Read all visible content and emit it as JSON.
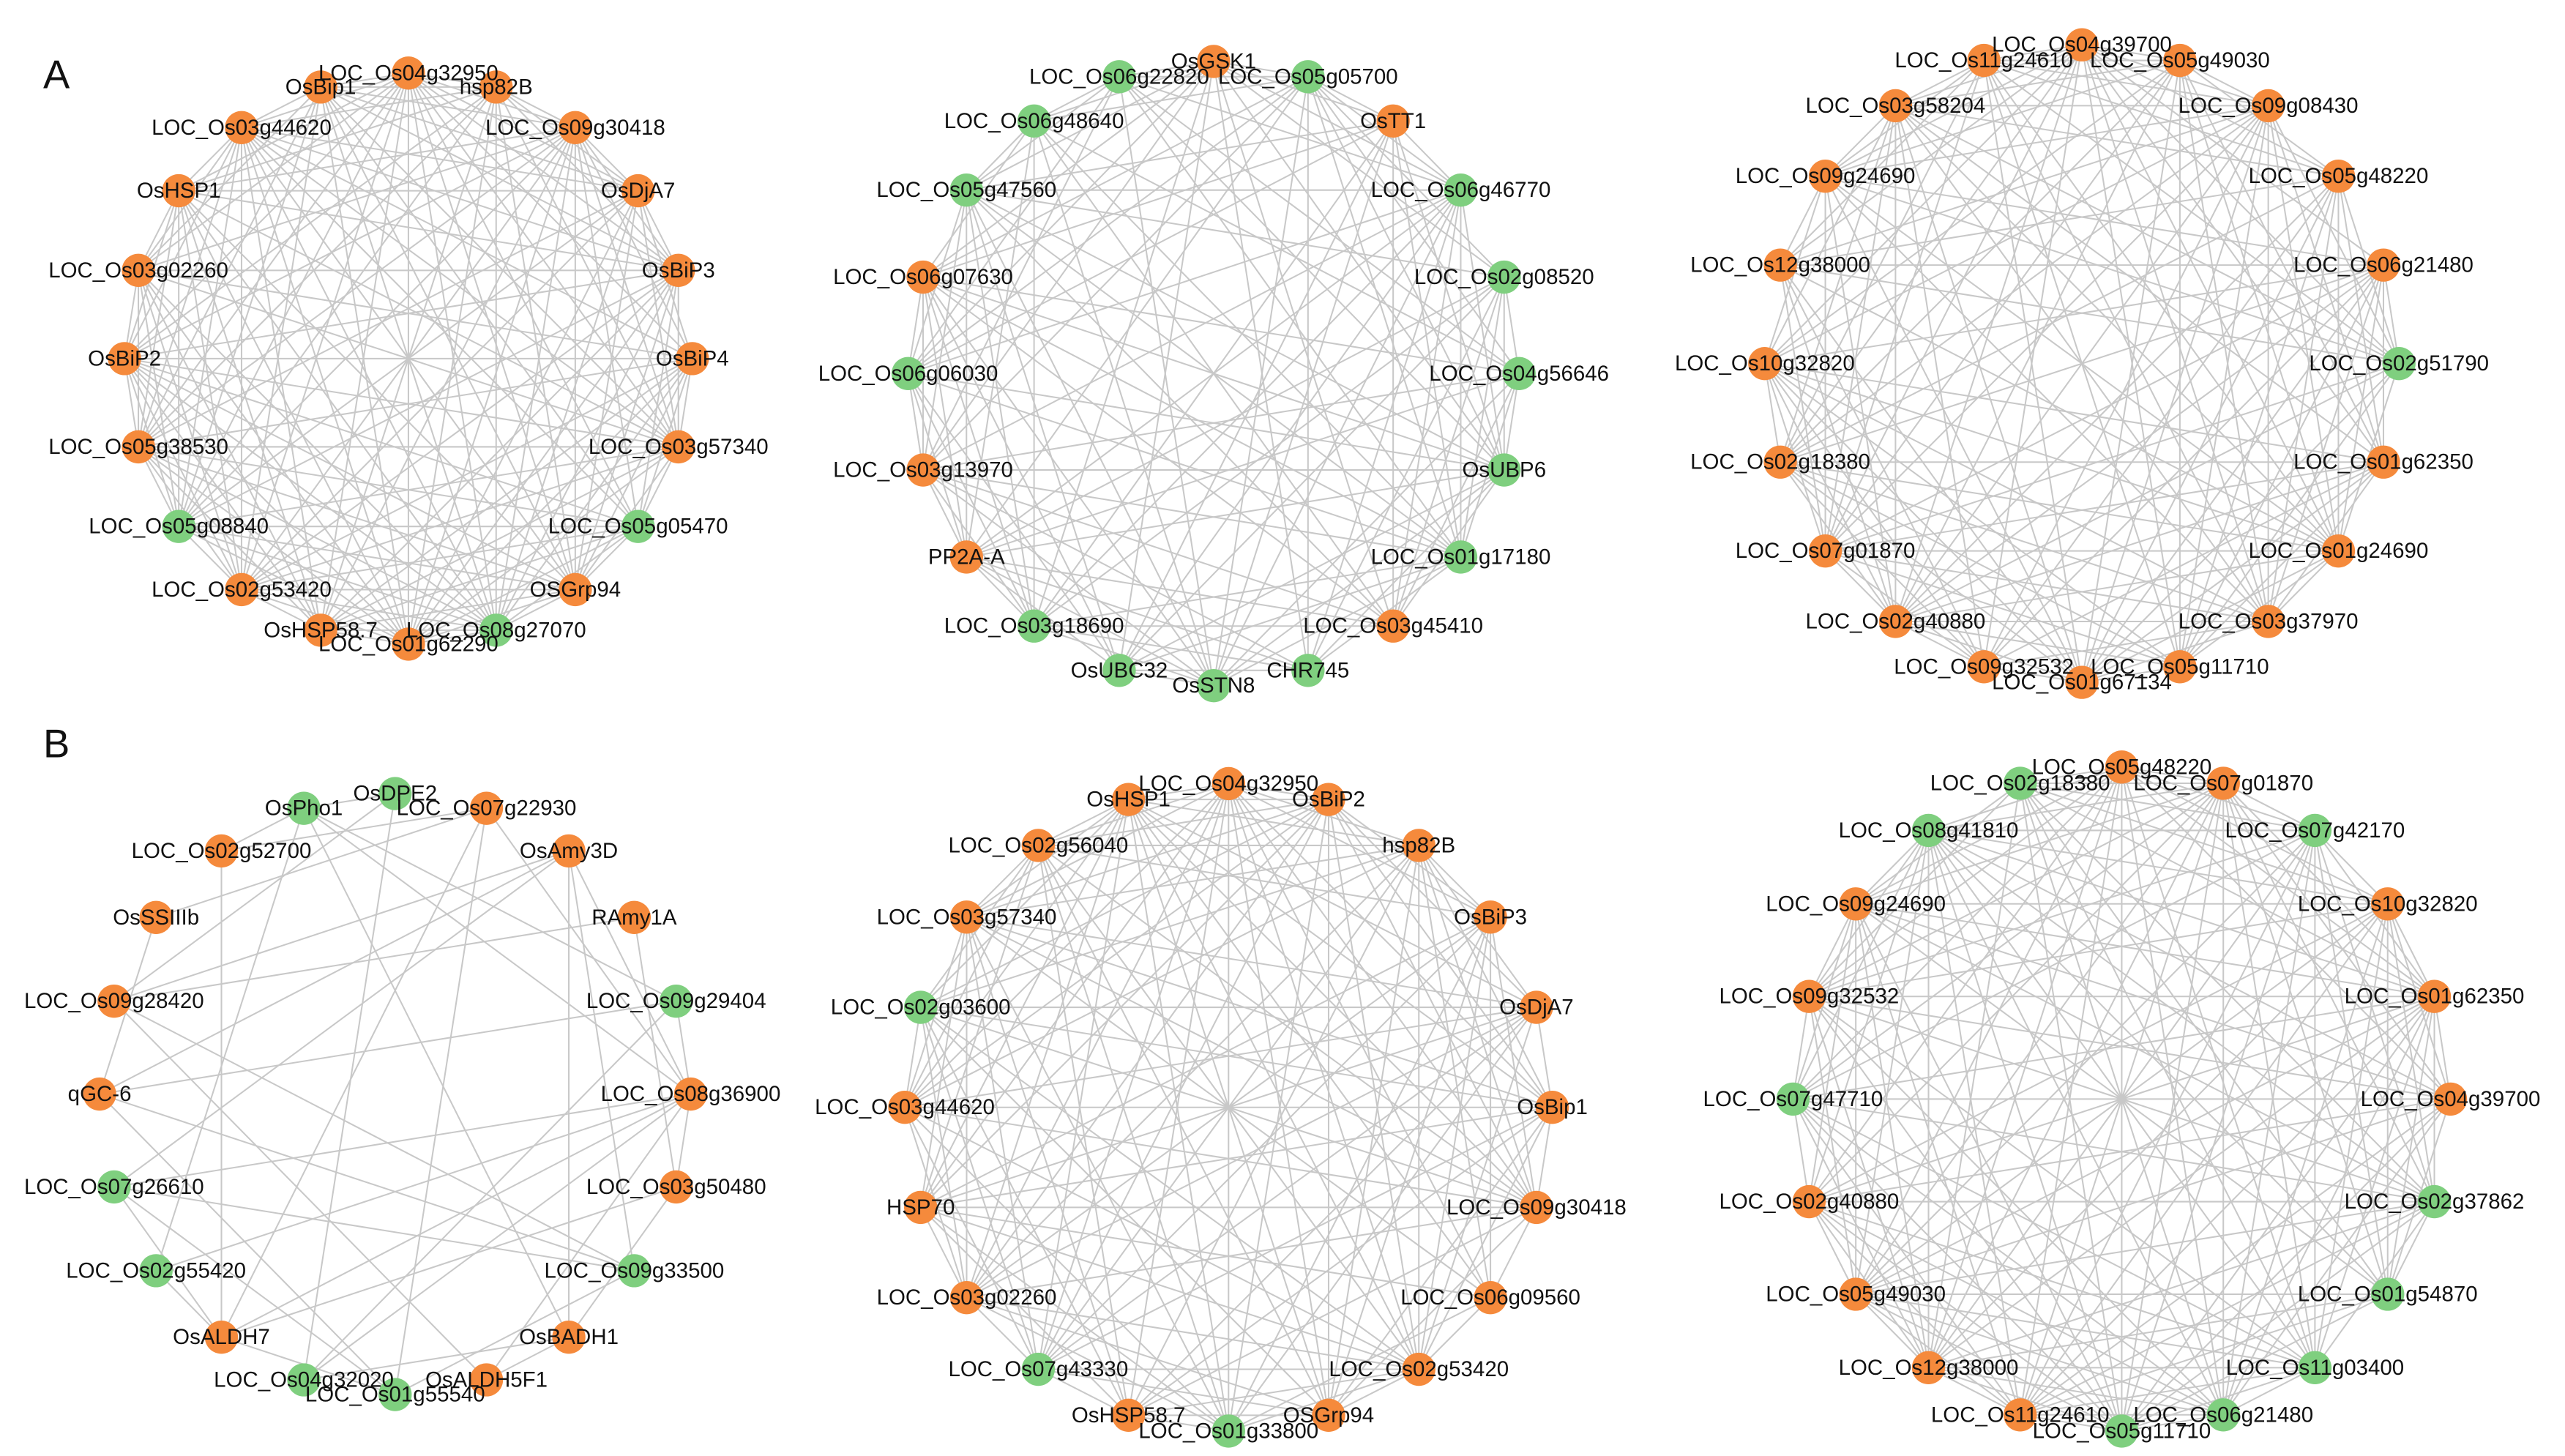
{
  "panels": [
    {
      "label": "A",
      "networks": [
        {
          "nodes": [
            {
              "label": "LOC_Os04g32950",
              "color": "#f58a3c"
            },
            {
              "label": "hsp82B",
              "color": "#f58a3c"
            },
            {
              "label": "LOC_Os09g30418",
              "color": "#f58a3c"
            },
            {
              "label": "OsDjA7",
              "color": "#f58a3c"
            },
            {
              "label": "OsBiP3",
              "color": "#f58a3c"
            },
            {
              "label": "OsBiP4",
              "color": "#f58a3c"
            },
            {
              "label": "LOC_Os03g57340",
              "color": "#f58a3c"
            },
            {
              "label": "LOC_Os05g05470",
              "color": "#7fcf7f"
            },
            {
              "label": "OSGrp94",
              "color": "#f58a3c"
            },
            {
              "label": "LOC_Os08g27070",
              "color": "#7fcf7f"
            },
            {
              "label": "LOC_Os01g62290",
              "color": "#f58a3c"
            },
            {
              "label": "OsHSP58.7",
              "color": "#f58a3c"
            },
            {
              "label": "LOC_Os02g53420",
              "color": "#f58a3c"
            },
            {
              "label": "LOC_Os05g08840",
              "color": "#7fcf7f"
            },
            {
              "label": "LOC_Os05g38530",
              "color": "#f58a3c"
            },
            {
              "label": "OsBiP2",
              "color": "#f58a3c"
            },
            {
              "label": "LOC_Os03g02260",
              "color": "#f58a3c"
            },
            {
              "label": "OsHSP1",
              "color": "#f58a3c"
            },
            {
              "label": "LOC_Os03g44620",
              "color": "#f58a3c"
            },
            {
              "label": "OsBip1",
              "color": "#f58a3c"
            }
          ]
        },
        {
          "nodes": [
            {
              "label": "OsGSK1",
              "color": "#f58a3c"
            },
            {
              "label": "LOC_Os05g05700",
              "color": "#7fcf7f"
            },
            {
              "label": "OsTT1",
              "color": "#f58a3c"
            },
            {
              "label": "LOC_Os06g46770",
              "color": "#7fcf7f"
            },
            {
              "label": "LOC_Os02g08520",
              "color": "#7fcf7f"
            },
            {
              "label": "LOC_Os04g56646",
              "color": "#7fcf7f"
            },
            {
              "label": "OsUBP6",
              "color": "#7fcf7f"
            },
            {
              "label": "LOC_Os01g17180",
              "color": "#7fcf7f"
            },
            {
              "label": "LOC_Os03g45410",
              "color": "#f58a3c"
            },
            {
              "label": "CHR745",
              "color": "#7fcf7f"
            },
            {
              "label": "OsSTN8",
              "color": "#7fcf7f"
            },
            {
              "label": "OsUBC32",
              "color": "#7fcf7f"
            },
            {
              "label": "LOC_Os03g18690",
              "color": "#7fcf7f"
            },
            {
              "label": "PP2A-A",
              "color": "#f58a3c"
            },
            {
              "label": "LOC_Os03g13970",
              "color": "#f58a3c"
            },
            {
              "label": "LOC_Os06g06030",
              "color": "#7fcf7f"
            },
            {
              "label": "LOC_Os06g07630",
              "color": "#f58a3c"
            },
            {
              "label": "LOC_Os05g47560",
              "color": "#7fcf7f"
            },
            {
              "label": "LOC_Os06g48640",
              "color": "#7fcf7f"
            },
            {
              "label": "LOC_Os06g22820",
              "color": "#7fcf7f"
            }
          ]
        },
        {
          "nodes": [
            {
              "label": "LOC_Os04g39700",
              "color": "#f58a3c"
            },
            {
              "label": "LOC_Os05g49030",
              "color": "#f58a3c"
            },
            {
              "label": "LOC_Os09g08430",
              "color": "#f58a3c"
            },
            {
              "label": "LOC_Os05g48220",
              "color": "#f58a3c"
            },
            {
              "label": "LOC_Os06g21480",
              "color": "#f58a3c"
            },
            {
              "label": "LOC_Os02g51790",
              "color": "#7fcf7f"
            },
            {
              "label": "LOC_Os01g62350",
              "color": "#f58a3c"
            },
            {
              "label": "LOC_Os01g24690",
              "color": "#f58a3c"
            },
            {
              "label": "LOC_Os03g37970",
              "color": "#f58a3c"
            },
            {
              "label": "LOC_Os05g11710",
              "color": "#f58a3c"
            },
            {
              "label": "LOC_Os01g67134",
              "color": "#f58a3c"
            },
            {
              "label": "LOC_Os09g32532",
              "color": "#f58a3c"
            },
            {
              "label": "LOC_Os02g40880",
              "color": "#f58a3c"
            },
            {
              "label": "LOC_Os07g01870",
              "color": "#f58a3c"
            },
            {
              "label": "LOC_Os02g18380",
              "color": "#f58a3c"
            },
            {
              "label": "LOC_Os10g32820",
              "color": "#f58a3c"
            },
            {
              "label": "LOC_Os12g38000",
              "color": "#f58a3c"
            },
            {
              "label": "LOC_Os09g24690",
              "color": "#f58a3c"
            },
            {
              "label": "LOC_Os03g58204",
              "color": "#f58a3c"
            },
            {
              "label": "LOC_Os11g24610",
              "color": "#f58a3c"
            }
          ]
        }
      ]
    },
    {
      "label": "B",
      "networks": [
        {
          "nodes": [
            {
              "label": "OsDPE2",
              "color": "#7fcf7f"
            },
            {
              "label": "LOC_Os07g22930",
              "color": "#f58a3c"
            },
            {
              "label": "OsAmy3D",
              "color": "#f58a3c"
            },
            {
              "label": "RAmy1A",
              "color": "#f58a3c"
            },
            {
              "label": "LOC_Os09g29404",
              "color": "#7fcf7f"
            },
            {
              "label": "LOC_Os08g36900",
              "color": "#f58a3c"
            },
            {
              "label": "LOC_Os03g50480",
              "color": "#f58a3c"
            },
            {
              "label": "LOC_Os09g33500",
              "color": "#7fcf7f"
            },
            {
              "label": "OsBADH1",
              "color": "#f58a3c"
            },
            {
              "label": "OsALDH5F1",
              "color": "#f58a3c"
            },
            {
              "label": "LOC_Os01g55540",
              "color": "#7fcf7f"
            },
            {
              "label": "LOC_Os04g32020",
              "color": "#7fcf7f"
            },
            {
              "label": "OsALDH7",
              "color": "#f58a3c"
            },
            {
              "label": "LOC_Os02g55420",
              "color": "#7fcf7f"
            },
            {
              "label": "LOC_Os07g26610",
              "color": "#7fcf7f"
            },
            {
              "label": "qGC-6",
              "color": "#f58a3c"
            },
            {
              "label": "LOC_Os09g28420",
              "color": "#f58a3c"
            },
            {
              "label": "OsSSIIIb",
              "color": "#f58a3c"
            },
            {
              "label": "LOC_Os02g52700",
              "color": "#f58a3c"
            },
            {
              "label": "OsPho1",
              "color": "#7fcf7f"
            }
          ]
        },
        {
          "nodes": [
            {
              "label": "LOC_Os04g32950",
              "color": "#f58a3c"
            },
            {
              "label": "OsBiP2",
              "color": "#f58a3c"
            },
            {
              "label": "hsp82B",
              "color": "#f58a3c"
            },
            {
              "label": "OsBiP3",
              "color": "#f58a3c"
            },
            {
              "label": "OsDjA7",
              "color": "#f58a3c"
            },
            {
              "label": "OsBip1",
              "color": "#f58a3c"
            },
            {
              "label": "LOC_Os09g30418",
              "color": "#f58a3c"
            },
            {
              "label": "LOC_Os06g09560",
              "color": "#f58a3c"
            },
            {
              "label": "LOC_Os02g53420",
              "color": "#f58a3c"
            },
            {
              "label": "OSGrp94",
              "color": "#f58a3c"
            },
            {
              "label": "LOC_Os01g33800",
              "color": "#7fcf7f"
            },
            {
              "label": "OsHSP58.7",
              "color": "#f58a3c"
            },
            {
              "label": "LOC_Os07g43330",
              "color": "#7fcf7f"
            },
            {
              "label": "LOC_Os03g02260",
              "color": "#f58a3c"
            },
            {
              "label": "HSP70",
              "color": "#f58a3c"
            },
            {
              "label": "LOC_Os03g44620",
              "color": "#f58a3c"
            },
            {
              "label": "LOC_Os02g03600",
              "color": "#7fcf7f"
            },
            {
              "label": "LOC_Os03g57340",
              "color": "#f58a3c"
            },
            {
              "label": "LOC_Os02g56040",
              "color": "#f58a3c"
            },
            {
              "label": "OsHSP1",
              "color": "#f58a3c"
            }
          ]
        },
        {
          "nodes": [
            {
              "label": "LOC_Os05g48220",
              "color": "#f58a3c"
            },
            {
              "label": "LOC_Os07g01870",
              "color": "#f58a3c"
            },
            {
              "label": "LOC_Os07g42170",
              "color": "#7fcf7f"
            },
            {
              "label": "LOC_Os10g32820",
              "color": "#f58a3c"
            },
            {
              "label": "LOC_Os01g62350",
              "color": "#f58a3c"
            },
            {
              "label": "LOC_Os04g39700",
              "color": "#f58a3c"
            },
            {
              "label": "LOC_Os02g37862",
              "color": "#7fcf7f"
            },
            {
              "label": "LOC_Os01g54870",
              "color": "#7fcf7f"
            },
            {
              "label": "LOC_Os11g03400",
              "color": "#7fcf7f"
            },
            {
              "label": "LOC_Os06g21480",
              "color": "#7fcf7f"
            },
            {
              "label": "LOC_Os05g11710",
              "color": "#7fcf7f"
            },
            {
              "label": "LOC_Os11g24610",
              "color": "#f58a3c"
            },
            {
              "label": "LOC_Os12g38000",
              "color": "#f58a3c"
            },
            {
              "label": "LOC_Os05g49030",
              "color": "#f58a3c"
            },
            {
              "label": "LOC_Os02g40880",
              "color": "#f58a3c"
            },
            {
              "label": "LOC_Os07g47710",
              "color": "#7fcf7f"
            },
            {
              "label": "LOC_Os09g32532",
              "color": "#f58a3c"
            },
            {
              "label": "LOC_Os09g24690",
              "color": "#f58a3c"
            },
            {
              "label": "LOC_Os08g41810",
              "color": "#7fcf7f"
            },
            {
              "label": "LOC_Os02g18380",
              "color": "#7fcf7f"
            }
          ]
        }
      ]
    }
  ]
}
